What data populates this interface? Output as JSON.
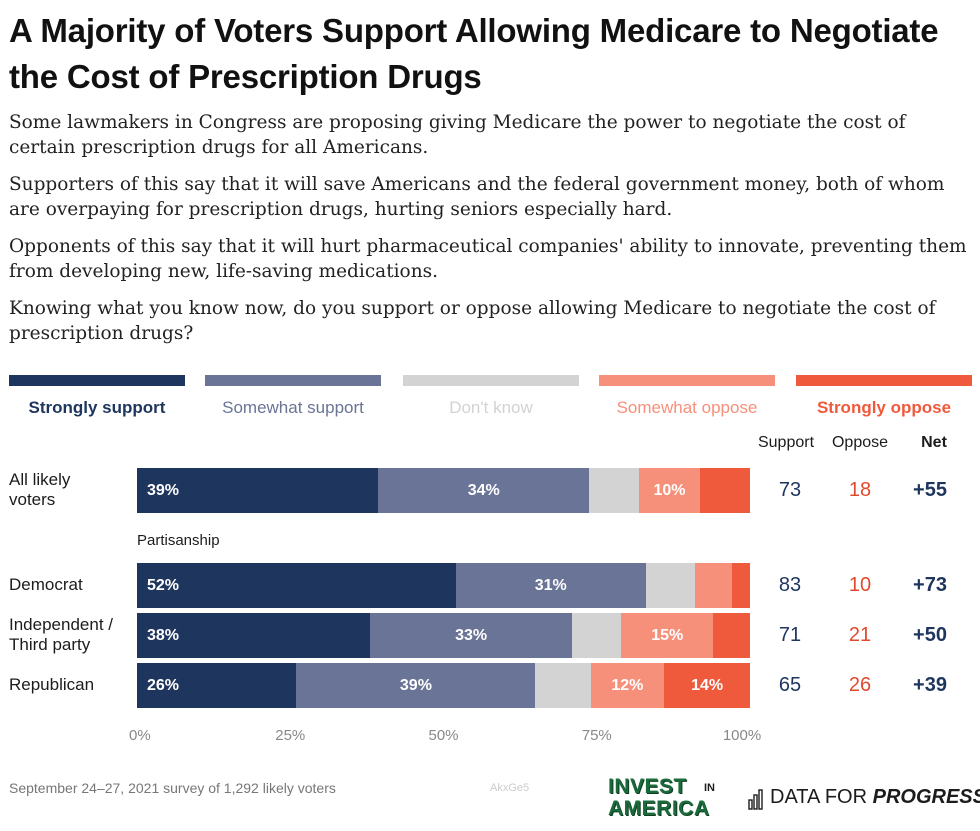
{
  "title": "A Majority of Voters Support Allowing Medicare to Negotiate the Cost of Prescription Drugs",
  "paragraphs": [
    "Some lawmakers in Congress are proposing giving Medicare the power to negotiate the cost of certain prescription drugs for all Americans.",
    "Supporters of this say that it will save Americans and the federal government money, both of whom are overpaying for prescription drugs, hurting seniors especially hard.",
    "Opponents of this say that it will hurt pharmaceutical companies' ability to innovate, preventing them from developing new, life-saving medications.",
    "Knowing what you know now, do you support or oppose allowing Medicare to negotiate the cost of prescription drugs?"
  ],
  "legend": [
    {
      "label": "Strongly support",
      "color": "#1e355e"
    },
    {
      "label": "Somewhat support",
      "color": "#6a7496"
    },
    {
      "label": "Don't know",
      "color": "#d3d3d3"
    },
    {
      "label": "Somewhat oppose",
      "color": "#f7907a"
    },
    {
      "label": "Strongly oppose",
      "color": "#f05a3c"
    }
  ],
  "columns": {
    "support": "Support",
    "oppose": "Oppose",
    "net": "Net"
  },
  "colors": {
    "support_text": "#1e355e",
    "oppose_text": "#e04a2e",
    "net_text": "#1e355e"
  },
  "chart_data": {
    "type": "bar",
    "orientation": "horizontal",
    "stacked": true,
    "xlim": [
      0,
      100
    ],
    "xticks": [
      "0%",
      "25%",
      "50%",
      "75%",
      "100%"
    ],
    "section_label": "Partisanship",
    "series_names": [
      "Strongly support",
      "Somewhat support",
      "Don't know",
      "Somewhat oppose",
      "Strongly oppose"
    ],
    "rows": [
      {
        "label": "All likely voters",
        "values": [
          39,
          34,
          8,
          10,
          8
        ],
        "labels": [
          "39%",
          "34%",
          "",
          "10%",
          ""
        ],
        "support": "73",
        "oppose": "18",
        "net": "+55"
      },
      {
        "label": "Democrat",
        "values": [
          52,
          31,
          8,
          6,
          3
        ],
        "labels": [
          "52%",
          "31%",
          "",
          "",
          ""
        ],
        "support": "83",
        "oppose": "10",
        "net": "+73"
      },
      {
        "label": "Independent / Third party",
        "values": [
          38,
          33,
          8,
          15,
          6
        ],
        "labels": [
          "38%",
          "33%",
          "",
          "15%",
          ""
        ],
        "support": "71",
        "oppose": "21",
        "net": "+50"
      },
      {
        "label": "Republican",
        "values": [
          26,
          39,
          9,
          12,
          14
        ],
        "labels": [
          "26%",
          "39%",
          "",
          "12%",
          "14%"
        ],
        "support": "65",
        "oppose": "26",
        "net": "+39"
      }
    ]
  },
  "footer": "September 24–27, 2021 survey of 1,292 likely voters",
  "watermark": "AkxGe5",
  "logos": {
    "invest_line1": "INVEST",
    "invest_in": "IN",
    "invest_line2": "AMERICA",
    "dfp_text_regular": "DATA FOR ",
    "dfp_text_italic": "PROGRESS"
  }
}
